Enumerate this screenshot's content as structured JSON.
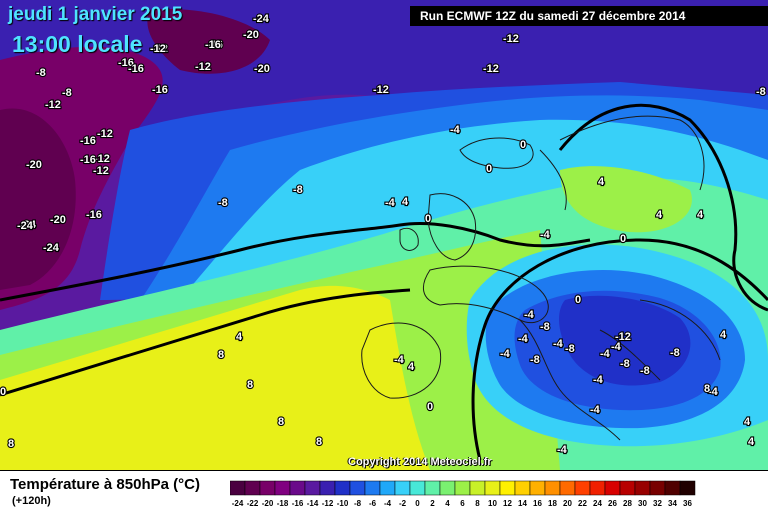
{
  "header": {
    "date": "jeudi 1 janvier 2015",
    "time": "13:00 locale",
    "run": "Run ECMWF 12Z du samedi 27 décembre 2014"
  },
  "copyright": "Copyright 2014 Meteociel.fr",
  "footer": {
    "title": "Température à 850hPa (°C)",
    "subtitle": "(+120h)"
  },
  "legend": {
    "values": [
      "-24",
      "-22",
      "-20",
      "-18",
      "-16",
      "-14",
      "-12",
      "-10",
      "-8",
      "-6",
      "-4",
      "-2",
      "0",
      "2",
      "4",
      "6",
      "8",
      "10",
      "12",
      "14",
      "16",
      "18",
      "20",
      "22",
      "24",
      "26",
      "28",
      "30",
      "32",
      "34",
      "36"
    ],
    "colors": [
      "#4a0040",
      "#600050",
      "#780068",
      "#800080",
      "#6a0a8a",
      "#5a1aa0",
      "#3a20b0",
      "#2030c8",
      "#2050e0",
      "#1e7af0",
      "#20a8f8",
      "#38d0f8",
      "#48e8d8",
      "#60f0a8",
      "#7af070",
      "#9cf048",
      "#c8f028",
      "#e8f018",
      "#fff000",
      "#ffd000",
      "#ffb000",
      "#ff9000",
      "#ff6a00",
      "#ff4000",
      "#f02000",
      "#d80000",
      "#b80000",
      "#980000",
      "#780000",
      "#500000",
      "#200000"
    ]
  },
  "map_labels": [
    {
      "text": "-24"
    },
    {
      "text": "-20"
    },
    {
      "text": "-16"
    },
    {
      "text": "-12"
    },
    {
      "text": "-8"
    },
    {
      "text": "-16"
    },
    {
      "text": "-12"
    },
    {
      "text": "-16"
    },
    {
      "text": "-12"
    },
    {
      "text": "-20"
    },
    {
      "text": "-16"
    },
    {
      "text": "-12"
    },
    {
      "text": "-16"
    },
    {
      "text": "-12"
    },
    {
      "text": "-12"
    },
    {
      "text": "-12"
    },
    {
      "text": "-12"
    },
    {
      "text": "-8"
    },
    {
      "text": "-8"
    },
    {
      "text": "-12"
    },
    {
      "text": "-16"
    },
    {
      "text": "-12"
    },
    {
      "text": "-16"
    },
    {
      "text": "-20"
    },
    {
      "text": "-24"
    },
    {
      "text": "-16"
    },
    {
      "text": "-20"
    },
    {
      "text": "-24"
    },
    {
      "text": "-24"
    },
    {
      "text": "-8"
    },
    {
      "text": "-8"
    },
    {
      "text": "-4"
    },
    {
      "text": "-4"
    },
    {
      "text": "0"
    },
    {
      "text": "0"
    },
    {
      "text": "0"
    },
    {
      "text": "-4"
    },
    {
      "text": "4"
    },
    {
      "text": "4"
    },
    {
      "text": "4"
    },
    {
      "text": "0"
    },
    {
      "text": "-4"
    },
    {
      "text": "0"
    },
    {
      "text": "-4"
    },
    {
      "text": "-8"
    },
    {
      "text": "-8"
    },
    {
      "text": "-12"
    },
    {
      "text": "-8"
    },
    {
      "text": "-4"
    },
    {
      "text": "-8"
    },
    {
      "text": "-4"
    },
    {
      "text": "-4"
    },
    {
      "text": "-8"
    },
    {
      "text": "-4"
    },
    {
      "text": "-4"
    },
    {
      "text": "-4"
    },
    {
      "text": "4"
    },
    {
      "text": "-4"
    },
    {
      "text": "4"
    },
    {
      "text": "4"
    },
    {
      "text": "8"
    },
    {
      "text": "8"
    },
    {
      "text": "8"
    },
    {
      "text": "8"
    },
    {
      "text": "8"
    },
    {
      "text": "4"
    },
    {
      "text": "4"
    },
    {
      "text": "0"
    },
    {
      "text": "-4"
    },
    {
      "text": "0"
    },
    {
      "text": "-8"
    },
    {
      "text": "-4"
    },
    {
      "text": "8"
    },
    {
      "text": "4"
    }
  ]
}
